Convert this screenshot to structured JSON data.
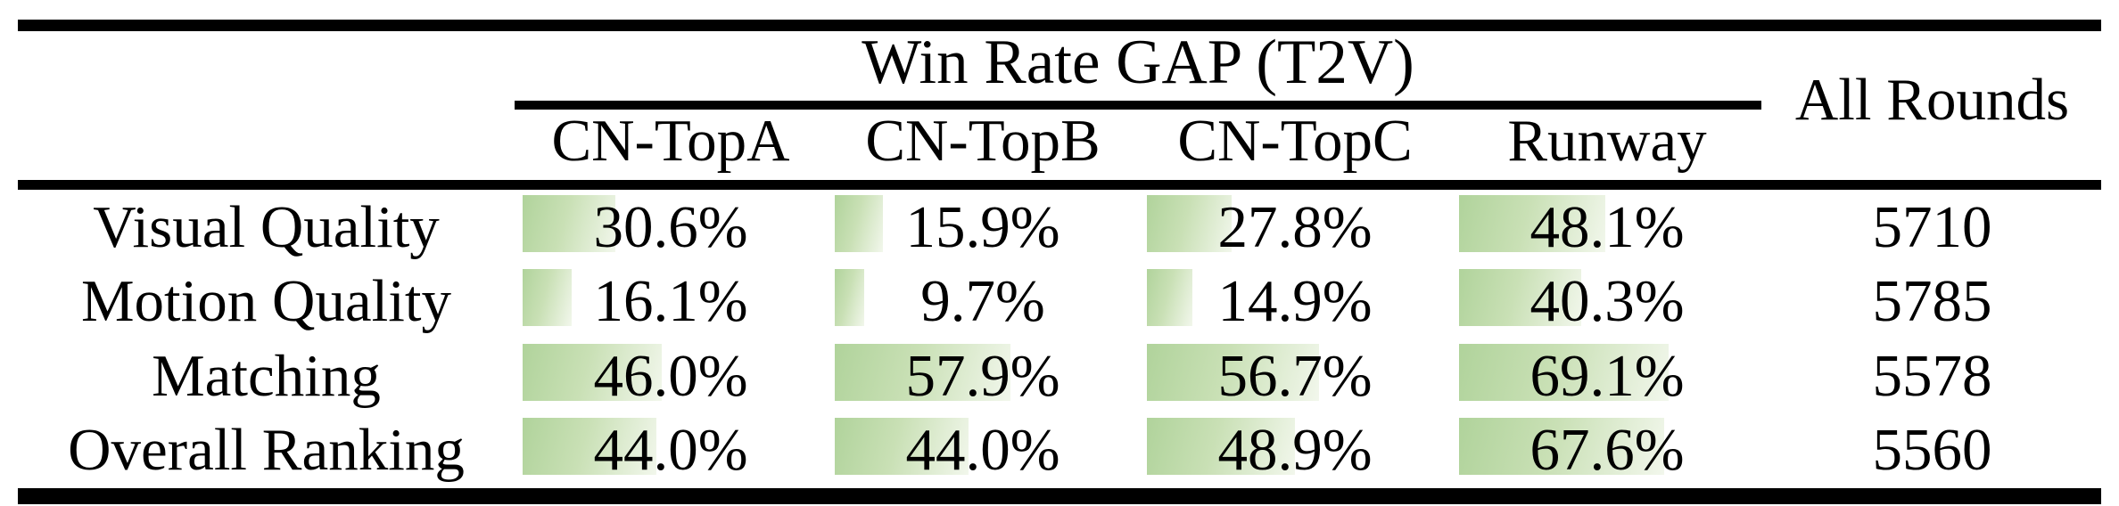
{
  "table": {
    "span_header": "Win Rate GAP (T2V)",
    "all_rounds_header": "All Rounds",
    "columns": [
      "CN-TopA",
      "CN-TopB",
      "CN-TopC",
      "Runway"
    ],
    "rows": [
      {
        "label": "Visual Quality",
        "cells": [
          {
            "text": "30.6%",
            "value": 30.6
          },
          {
            "text": "15.9%",
            "value": 15.9
          },
          {
            "text": "27.8%",
            "value": 27.8
          },
          {
            "text": "48.1%",
            "value": 48.1
          }
        ],
        "all_rounds": "5710"
      },
      {
        "label": "Motion Quality",
        "cells": [
          {
            "text": "16.1%",
            "value": 16.1
          },
          {
            "text": "9.7%",
            "value": 9.7
          },
          {
            "text": "14.9%",
            "value": 14.9
          },
          {
            "text": "40.3%",
            "value": 40.3
          }
        ],
        "all_rounds": "5785"
      },
      {
        "label": "Matching",
        "cells": [
          {
            "text": "46.0%",
            "value": 46.0
          },
          {
            "text": "57.9%",
            "value": 57.9
          },
          {
            "text": "56.7%",
            "value": 56.7
          },
          {
            "text": "69.1%",
            "value": 69.1
          }
        ],
        "all_rounds": "5578"
      },
      {
        "label": "Overall Ranking",
        "cells": [
          {
            "text": "44.0%",
            "value": 44.0
          },
          {
            "text": "44.0%",
            "value": 44.0
          },
          {
            "text": "48.9%",
            "value": 48.9
          },
          {
            "text": "67.6%",
            "value": 67.6
          }
        ],
        "all_rounds": "5560"
      }
    ]
  },
  "colors": {
    "bar_gradient_start": "#b0d39b",
    "bar_gradient_mid": "#c9e0b5",
    "bar_gradient_end": "#f2f7ec",
    "rule": "#000000",
    "background": "#ffffff",
    "text": "#000000"
  },
  "chart_data": {
    "type": "table",
    "title": "Win Rate GAP (T2V)",
    "row_labels": [
      "Visual Quality",
      "Motion Quality",
      "Matching",
      "Overall Ranking"
    ],
    "columns": [
      "CN-TopA",
      "CN-TopB",
      "CN-TopC",
      "Runway",
      "All Rounds"
    ],
    "series": [
      {
        "name": "CN-TopA",
        "unit": "%",
        "values": [
          30.6,
          16.1,
          46.0,
          44.0
        ]
      },
      {
        "name": "CN-TopB",
        "unit": "%",
        "values": [
          15.9,
          9.7,
          57.9,
          44.0
        ]
      },
      {
        "name": "CN-TopC",
        "unit": "%",
        "values": [
          27.8,
          14.9,
          56.7,
          48.9
        ]
      },
      {
        "name": "Runway",
        "unit": "%",
        "values": [
          48.1,
          40.3,
          69.1,
          67.6
        ]
      },
      {
        "name": "All Rounds",
        "unit": "rounds",
        "values": [
          5710,
          5785,
          5578,
          5560
        ]
      }
    ],
    "layout_hints": "in-cell horizontal bars, green-to-white gradient, bar width proportional to percent (100% = full cell width); booktabs-style horizontal rules only"
  }
}
